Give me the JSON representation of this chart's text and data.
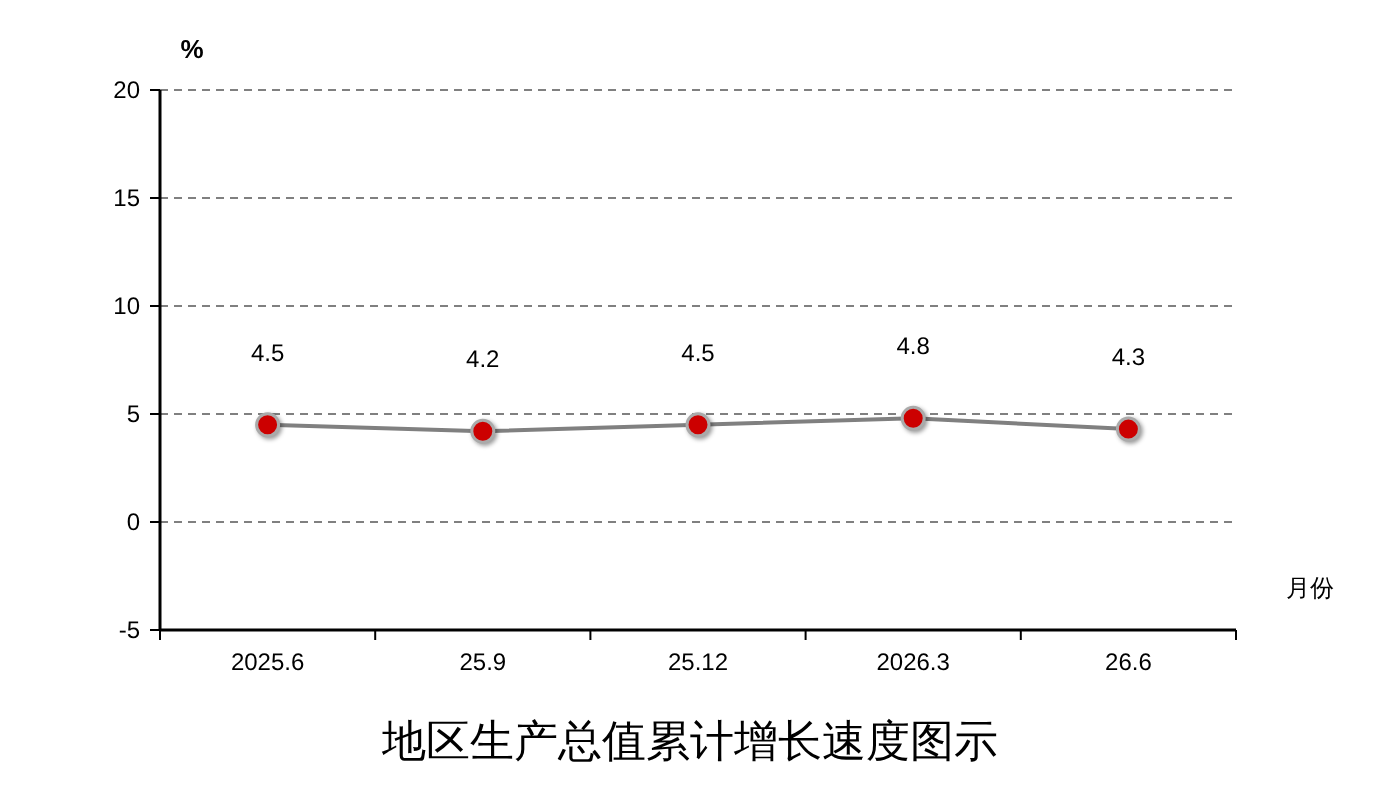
{
  "chart_data": {
    "type": "line",
    "title": "地区生产总值累计增长速度图示",
    "ylabel": "%",
    "xlabel": "月份",
    "categories": [
      "2025.6",
      "25.9",
      "25.12",
      "2026.3",
      "26.6"
    ],
    "series": [
      {
        "color": "#cc0000",
        "values": [
          4.5,
          4.2,
          4.5,
          4.8,
          4.3
        ]
      }
    ],
    "ylim": [
      -5,
      20
    ],
    "yticks": [
      -5,
      0,
      5,
      10,
      15,
      20
    ],
    "grid": "y",
    "data_labels": true,
    "marker": "circle",
    "line_style": "solid"
  }
}
